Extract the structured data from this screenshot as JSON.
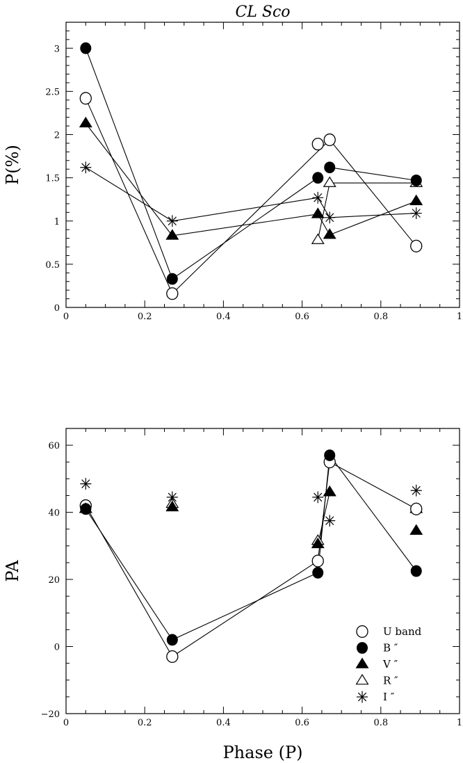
{
  "chart_data": [
    {
      "type": "line",
      "title": "CL Sco",
      "xlabel": "",
      "ylabel": "P(%)",
      "xlim": [
        0,
        1
      ],
      "ylim": [
        0,
        3.3
      ],
      "xticks": [
        0,
        0.2,
        0.4,
        0.6,
        0.8,
        1
      ],
      "xtick_labels": [
        "0",
        "0.2",
        "0.4",
        "0.6",
        "0.8",
        "1"
      ],
      "yticks": [
        0,
        0.5,
        1,
        1.5,
        2,
        2.5,
        3
      ],
      "ytick_labels": [
        "0",
        "0.5",
        "1",
        "1.5",
        "2",
        "2.5",
        "3"
      ],
      "grid": false,
      "series": [
        {
          "name": "U band",
          "marker": "open-circle",
          "x": [
            0.05,
            0.27,
            0.64,
            0.67,
            0.89
          ],
          "y": [
            2.42,
            0.16,
            1.89,
            1.94,
            0.71
          ],
          "lines": [
            [
              0,
              1
            ],
            [
              1,
              3
            ],
            [
              3,
              4
            ]
          ]
        },
        {
          "name": "B",
          "marker": "filled-circle",
          "x": [
            0.05,
            0.27,
            0.64,
            0.67,
            0.89
          ],
          "y": [
            3.0,
            0.33,
            1.5,
            1.62,
            1.47
          ],
          "lines": [
            [
              0,
              1
            ],
            [
              1,
              2
            ],
            [
              3,
              4
            ]
          ]
        },
        {
          "name": "V",
          "marker": "filled-triangle",
          "x": [
            0.05,
            0.27,
            0.64,
            0.67,
            0.89
          ],
          "y": [
            2.13,
            0.83,
            1.08,
            0.84,
            1.23
          ],
          "lines": [
            [
              0,
              1
            ],
            [
              1,
              2
            ],
            [
              2,
              3
            ],
            [
              3,
              4
            ]
          ]
        },
        {
          "name": "R",
          "marker": "open-triangle",
          "x": [
            0.64,
            0.67,
            0.89
          ],
          "y": [
            0.78,
            1.44,
            1.44
          ],
          "lines": [
            [
              0,
              1
            ],
            [
              1,
              2
            ]
          ]
        },
        {
          "name": "I",
          "marker": "asterisk",
          "x": [
            0.05,
            0.27,
            0.64,
            0.67,
            0.89
          ],
          "y": [
            1.62,
            1.0,
            1.27,
            1.04,
            1.09
          ],
          "lines": [
            [
              0,
              1
            ],
            [
              1,
              2
            ],
            [
              2,
              3
            ],
            [
              3,
              4
            ]
          ]
        }
      ]
    },
    {
      "type": "line",
      "title": "",
      "xlabel": "Phase (P)",
      "ylabel": "PA",
      "xlim": [
        0,
        1
      ],
      "ylim": [
        -20,
        65
      ],
      "xticks": [
        0,
        0.2,
        0.4,
        0.6,
        0.8,
        1
      ],
      "xtick_labels": [
        "0",
        "0.2",
        "0.4",
        "0.6",
        "0.8",
        "1"
      ],
      "yticks": [
        -20,
        0,
        20,
        40,
        60
      ],
      "ytick_labels": [
        "−20",
        "0",
        "20",
        "40",
        "60"
      ],
      "grid": false,
      "legend": {
        "position": "bottom-right",
        "entries": [
          {
            "marker": "open-circle",
            "label": "U band"
          },
          {
            "marker": "filled-circle",
            "label": "B ″"
          },
          {
            "marker": "filled-triangle",
            "label": "V ″"
          },
          {
            "marker": "open-triangle",
            "label": "R ″"
          },
          {
            "marker": "asterisk",
            "label": "I ″"
          }
        ]
      },
      "series": [
        {
          "name": "U band",
          "marker": "open-circle",
          "x": [
            0.05,
            0.27,
            0.64,
            0.67,
            0.89
          ],
          "y": [
            42,
            -3,
            25.5,
            55,
            41
          ],
          "lines": [
            [
              0,
              1
            ],
            [
              1,
              2
            ],
            [
              2,
              3
            ],
            [
              3,
              4
            ]
          ]
        },
        {
          "name": "B",
          "marker": "filled-circle",
          "x": [
            0.05,
            0.27,
            0.64,
            0.67,
            0.89
          ],
          "y": [
            41,
            2,
            22,
            57,
            22.5
          ],
          "lines": [
            [
              0,
              1
            ],
            [
              1,
              2
            ],
            [
              2,
              3
            ],
            [
              3,
              4
            ]
          ]
        },
        {
          "name": "V",
          "marker": "filled-triangle",
          "x": [
            0.05,
            0.27,
            0.64,
            0.67,
            0.89
          ],
          "y": [
            41,
            41.5,
            30.5,
            46,
            34.5
          ],
          "lines": [
            [
              2,
              3
            ]
          ]
        },
        {
          "name": "R",
          "marker": "open-triangle",
          "x": [
            0.05,
            0.27,
            0.64,
            0.67,
            0.89
          ],
          "y": [
            41,
            42.5,
            31.5,
            46,
            41
          ],
          "lines": []
        },
        {
          "name": "I",
          "marker": "asterisk",
          "x": [
            0.05,
            0.27,
            0.64,
            0.67,
            0.89
          ],
          "y": [
            48.5,
            44.5,
            44.5,
            37.5,
            46.5
          ],
          "lines": []
        }
      ]
    }
  ]
}
